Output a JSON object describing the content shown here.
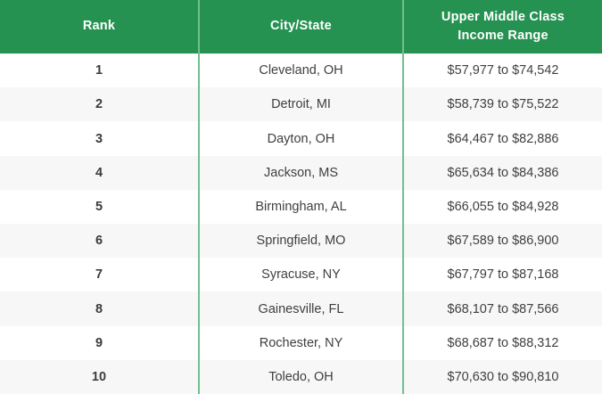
{
  "colors": {
    "header_bg": "#259251",
    "divider": "#70c08f",
    "alt_row_bg": "#f7f7f7",
    "header_text": "#ffffff",
    "body_text": "#3f3f3f"
  },
  "table": {
    "columns": [
      {
        "label": "Rank"
      },
      {
        "label": "City/State"
      },
      {
        "label": "Upper Middle Class Income Range"
      }
    ],
    "rows": [
      {
        "rank": "1",
        "city": "Cleveland, OH",
        "range": "$57,977 to $74,542"
      },
      {
        "rank": "2",
        "city": "Detroit, MI",
        "range": "$58,739 to $75,522"
      },
      {
        "rank": "3",
        "city": "Dayton, OH",
        "range": "$64,467 to $82,886"
      },
      {
        "rank": "4",
        "city": "Jackson, MS",
        "range": "$65,634 to $84,386"
      },
      {
        "rank": "5",
        "city": "Birmingham, AL",
        "range": "$66,055 to $84,928"
      },
      {
        "rank": "6",
        "city": "Springfield, MO",
        "range": "$67,589 to $86,900"
      },
      {
        "rank": "7",
        "city": "Syracuse, NY",
        "range": "$67,797 to $87,168"
      },
      {
        "rank": "8",
        "city": "Gainesville, FL",
        "range": "$68,107 to $87,566"
      },
      {
        "rank": "9",
        "city": "Rochester, NY",
        "range": "$68,687 to $88,312"
      },
      {
        "rank": "10",
        "city": "Toledo, OH",
        "range": "$70,630 to $90,810"
      }
    ]
  },
  "chart_data": {
    "type": "table",
    "title": "",
    "columns": [
      "Rank",
      "City/State",
      "Upper Middle Class Income Range"
    ],
    "rows": [
      [
        "1",
        "Cleveland, OH",
        "$57,977 to $74,542"
      ],
      [
        "2",
        "Detroit, MI",
        "$58,739 to $75,522"
      ],
      [
        "3",
        "Dayton, OH",
        "$64,467 to $82,886"
      ],
      [
        "4",
        "Jackson, MS",
        "$65,634 to $84,386"
      ],
      [
        "5",
        "Birmingham, AL",
        "$66,055 to $84,928"
      ],
      [
        "6",
        "Springfield, MO",
        "$67,589 to $86,900"
      ],
      [
        "7",
        "Syracuse, NY",
        "$67,797 to $87,168"
      ],
      [
        "8",
        "Gainesville, FL",
        "$68,107 to $87,566"
      ],
      [
        "9",
        "Rochester, NY",
        "$68,687 to $88,312"
      ],
      [
        "10",
        "Toledo, OH",
        "$70,630 to $90,810"
      ]
    ]
  }
}
